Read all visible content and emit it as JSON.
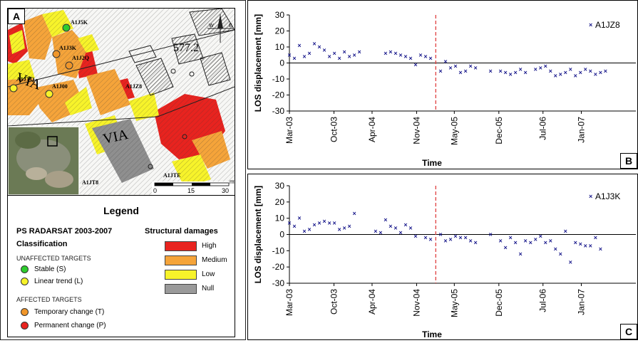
{
  "colors": {
    "stable": "#2ecc2e",
    "linear": "#f7f32a",
    "temporary": "#f0962a",
    "permanent": "#e8231f",
    "high": "#e8231f",
    "medium": "#f5a43a",
    "low": "#f7f32a",
    "null": "#9a9a9a",
    "series": "#1a1a8c",
    "event_line": "#e04040"
  },
  "map": {
    "letter": "A",
    "parcel_number": "577.2",
    "street_label_1": "VIA",
    "street_label_2": "VIA",
    "scale_unit": "m",
    "scale_ticks": [
      "0",
      "15",
      "30"
    ],
    "targets": [
      {
        "label": "A1J5K",
        "type": "stable"
      },
      {
        "label": "A1J3K",
        "type": "temporary"
      },
      {
        "label": "A1J2Q",
        "type": "temporary"
      },
      {
        "label": "A1JTQ",
        "type": "linear"
      },
      {
        "label": "A1J00",
        "type": "linear"
      },
      {
        "label": "A1JZ8",
        "type": "none"
      },
      {
        "label": "A1JT8",
        "type": "none"
      },
      {
        "label": "A1JTE",
        "type": "none"
      }
    ]
  },
  "legend": {
    "title": "Legend",
    "heading": "PS RADARSAT 2003-2007",
    "classification": "Classification",
    "unaffected": "UNAFFECTED TARGETS",
    "stable": "Stable (S)",
    "linear": "Linear trend (L)",
    "affected": "AFFECTED TARGETS",
    "temporary": "Temporary change (T)",
    "permanent": "Permanent change (P)",
    "damages_title": "Structural damages",
    "high": "High",
    "medium": "Medium",
    "low": "Low",
    "null": "Null"
  },
  "chart_data": [
    {
      "id": "B",
      "type": "scatter",
      "panel_letter": "B",
      "ylabel": "LOS displacement  [mm]",
      "xlabel": "Time",
      "ylim": [
        -30,
        30
      ],
      "yticks": [
        "30",
        "20",
        "10",
        "0",
        "-10",
        "-20",
        "-30"
      ],
      "xticks": [
        "Mar-03",
        "Oct-03",
        "Apr-04",
        "Nov-04",
        "May-05",
        "Dec-05",
        "Jul-06",
        "Jan-07"
      ],
      "event": "Feb-05",
      "series": [
        {
          "name": "A1JZ8",
          "marker": "x",
          "points": [
            [
              "2003-03-01",
              5
            ],
            [
              "2003-03-25",
              3
            ],
            [
              "2003-04-18",
              11
            ],
            [
              "2003-05-12",
              4
            ],
            [
              "2003-06-05",
              6
            ],
            [
              "2003-06-29",
              12
            ],
            [
              "2003-07-23",
              10
            ],
            [
              "2003-08-16",
              8
            ],
            [
              "2003-09-09",
              4
            ],
            [
              "2003-10-03",
              6
            ],
            [
              "2003-10-27",
              3
            ],
            [
              "2003-11-20",
              7
            ],
            [
              "2003-12-14",
              4
            ],
            [
              "2004-01-07",
              5
            ],
            [
              "2004-01-31",
              7
            ],
            [
              "2004-06-05",
              6
            ],
            [
              "2004-06-29",
              7
            ],
            [
              "2004-07-23",
              6
            ],
            [
              "2004-08-16",
              5
            ],
            [
              "2004-09-09",
              4
            ],
            [
              "2004-10-03",
              3
            ],
            [
              "2004-10-27",
              -1
            ],
            [
              "2004-11-20",
              5
            ],
            [
              "2004-12-14",
              4
            ],
            [
              "2005-01-07",
              3
            ],
            [
              "2005-02-24",
              -5
            ],
            [
              "2005-03-20",
              1
            ],
            [
              "2005-04-13",
              -3
            ],
            [
              "2005-05-07",
              -2
            ],
            [
              "2005-05-31",
              -6
            ],
            [
              "2005-06-24",
              -5
            ],
            [
              "2005-07-18",
              -2
            ],
            [
              "2005-08-11",
              -3
            ],
            [
              "2005-10-22",
              -5
            ],
            [
              "2005-12-09",
              -5
            ],
            [
              "2006-01-02",
              -6
            ],
            [
              "2006-01-26",
              -7
            ],
            [
              "2006-02-19",
              -6
            ],
            [
              "2006-03-15",
              -4
            ],
            [
              "2006-04-08",
              -6
            ],
            [
              "2006-05-26",
              -4
            ],
            [
              "2006-06-19",
              -3
            ],
            [
              "2006-07-13",
              -2
            ],
            [
              "2006-08-06",
              -5
            ],
            [
              "2006-08-30",
              -8
            ],
            [
              "2006-09-23",
              -7
            ],
            [
              "2006-10-17",
              -6
            ],
            [
              "2006-11-10",
              -4
            ],
            [
              "2006-12-04",
              -8
            ],
            [
              "2006-12-28",
              -6
            ],
            [
              "2007-01-21",
              -4
            ],
            [
              "2007-02-14",
              -5
            ],
            [
              "2007-03-10",
              -7
            ],
            [
              "2007-04-03",
              -6
            ],
            [
              "2007-04-27",
              -5
            ]
          ]
        }
      ]
    },
    {
      "id": "C",
      "type": "scatter",
      "panel_letter": "C",
      "ylabel": "LOS displacement  [mm]",
      "xlabel": "Time",
      "ylim": [
        -30,
        30
      ],
      "yticks": [
        "30",
        "20",
        "10",
        "0",
        "-10",
        "-20",
        "-30"
      ],
      "xticks": [
        "Mar-03",
        "Oct-03",
        "Apr-04",
        "Nov-04",
        "May-05",
        "Dec-05",
        "Jul-06",
        "Jan-07"
      ],
      "event": "Feb-05",
      "series": [
        {
          "name": "A1J3K",
          "marker": "x",
          "points": [
            [
              "2003-03-01",
              7
            ],
            [
              "2003-03-25",
              5
            ],
            [
              "2003-04-18",
              10
            ],
            [
              "2003-05-12",
              2
            ],
            [
              "2003-06-05",
              3
            ],
            [
              "2003-06-29",
              6
            ],
            [
              "2003-07-23",
              7
            ],
            [
              "2003-08-16",
              8
            ],
            [
              "2003-09-09",
              7
            ],
            [
              "2003-10-03",
              7
            ],
            [
              "2003-10-27",
              3
            ],
            [
              "2003-11-20",
              4
            ],
            [
              "2003-12-14",
              5
            ],
            [
              "2004-01-07",
              13
            ],
            [
              "2004-04-18",
              2
            ],
            [
              "2004-05-12",
              1
            ],
            [
              "2004-06-05",
              9
            ],
            [
              "2004-06-29",
              5
            ],
            [
              "2004-07-23",
              4
            ],
            [
              "2004-08-16",
              1
            ],
            [
              "2004-09-09",
              6
            ],
            [
              "2004-10-03",
              4
            ],
            [
              "2004-10-27",
              -1
            ],
            [
              "2004-12-14",
              -2
            ],
            [
              "2005-01-07",
              -3
            ],
            [
              "2005-02-24",
              0
            ],
            [
              "2005-03-20",
              -4
            ],
            [
              "2005-04-13",
              -3
            ],
            [
              "2005-05-07",
              -1
            ],
            [
              "2005-05-31",
              -2
            ],
            [
              "2005-06-24",
              -2
            ],
            [
              "2005-07-18",
              -4
            ],
            [
              "2005-08-11",
              -5
            ],
            [
              "2005-10-22",
              0
            ],
            [
              "2005-12-09",
              -4
            ],
            [
              "2006-01-02",
              -8
            ],
            [
              "2006-01-26",
              -2
            ],
            [
              "2006-02-19",
              -5
            ],
            [
              "2006-03-15",
              -12
            ],
            [
              "2006-04-08",
              -4
            ],
            [
              "2006-05-02",
              -5
            ],
            [
              "2006-05-26",
              -3
            ],
            [
              "2006-06-19",
              -1
            ],
            [
              "2006-07-13",
              -5
            ],
            [
              "2006-08-06",
              -4
            ],
            [
              "2006-08-30",
              -9
            ],
            [
              "2006-09-23",
              -12
            ],
            [
              "2006-10-17",
              2
            ],
            [
              "2006-11-10",
              -17
            ],
            [
              "2006-12-04",
              -5
            ],
            [
              "2006-12-28",
              -6
            ],
            [
              "2007-01-21",
              -7
            ],
            [
              "2007-02-14",
              -7
            ],
            [
              "2007-03-10",
              -2
            ],
            [
              "2007-04-03",
              -9
            ]
          ]
        }
      ]
    }
  ]
}
